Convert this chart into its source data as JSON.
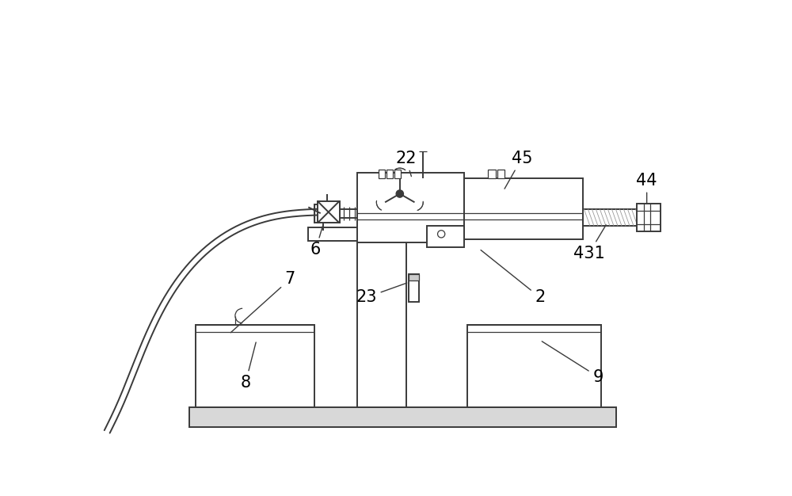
{
  "bg_color": "#ffffff",
  "lc": "#3a3a3a",
  "lw": 1.4,
  "tlw": 0.9,
  "fs": 15
}
